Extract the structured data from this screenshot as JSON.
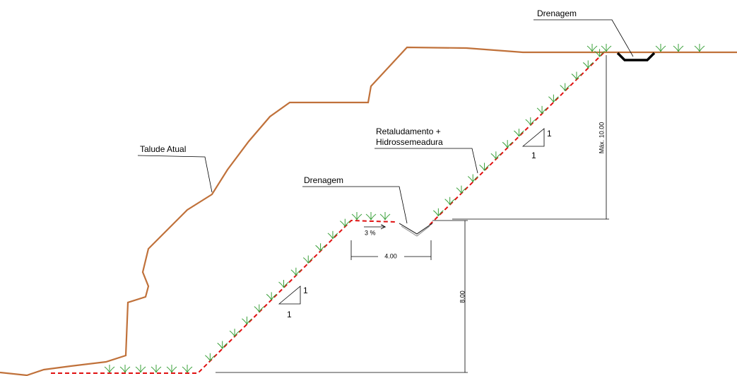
{
  "labels": {
    "drain_top": "Drenagem",
    "existing_slope": "Talude Atual",
    "reshaping_line1": "Retaludamento +",
    "reshaping_line2": "Hidrossemeadura",
    "drain_mid": "Drenagem",
    "slope_upper_v": "1",
    "slope_upper_h": "1",
    "slope_lower_v": "1",
    "slope_lower_h": "1",
    "gradient": "3 %",
    "berm_width": "4.00",
    "lower_height": "8.00",
    "upper_height": "Máx. 10.00"
  }
}
